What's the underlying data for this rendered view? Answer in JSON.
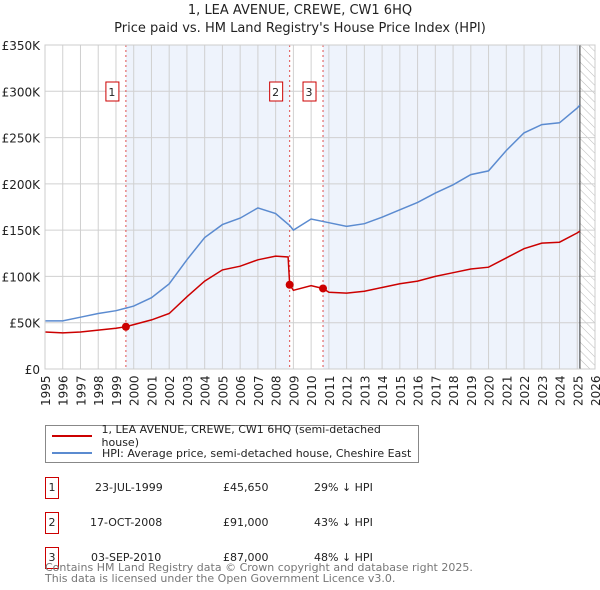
{
  "header": {
    "title": "1, LEA AVENUE, CREWE, CW1 6HQ",
    "subtitle": "Price paid vs. HM Land Registry's House Price Index (HPI)"
  },
  "chart_data": {
    "type": "line",
    "title": "1, LEA AVENUE, CREWE, CW1 6HQ",
    "subtitle": "Price paid vs. HM Land Registry's House Price Index (HPI)",
    "xlim": [
      1995,
      2026
    ],
    "ylim": [
      0,
      350000
    ],
    "x_ticks": [
      "1995",
      "1996",
      "1997",
      "1998",
      "1999",
      "2000",
      "2001",
      "2002",
      "2003",
      "2004",
      "2005",
      "2006",
      "2007",
      "2008",
      "2009",
      "2010",
      "2011",
      "2012",
      "2013",
      "2014",
      "2015",
      "2016",
      "2017",
      "2018",
      "2019",
      "2020",
      "2021",
      "2022",
      "2023",
      "2024",
      "2025",
      "2026"
    ],
    "y_ticks": [
      {
        "v": 0,
        "label": "£0"
      },
      {
        "v": 50000,
        "label": "£50K"
      },
      {
        "v": 100000,
        "label": "£100K"
      },
      {
        "v": 150000,
        "label": "£150K"
      },
      {
        "v": 200000,
        "label": "£200K"
      },
      {
        "v": 250000,
        "label": "£250K"
      },
      {
        "v": 300000,
        "label": "£300K"
      },
      {
        "v": 350000,
        "label": "£350K"
      }
    ],
    "grid": true,
    "forecast_start": 2025.15,
    "series": [
      {
        "name": "1, LEA AVENUE, CREWE, CW1 6HQ (semi-detached house)",
        "color": "#cc0000",
        "x": [
          1995,
          1996,
          1997,
          1998,
          1999,
          1999.56,
          2000,
          2001,
          2002,
          2003,
          2004,
          2005,
          2006,
          2007,
          2008,
          2008.7,
          2008.79,
          2009,
          2010,
          2010.67,
          2011,
          2012,
          2013,
          2014,
          2015,
          2016,
          2017,
          2018,
          2019,
          2020,
          2021,
          2022,
          2023,
          2024,
          2025,
          2025.15
        ],
        "y": [
          40000,
          39000,
          40000,
          42000,
          44000,
          45650,
          48000,
          53000,
          60000,
          78000,
          95000,
          107000,
          111000,
          118000,
          122000,
          121000,
          91000,
          85000,
          90000,
          87000,
          83000,
          82000,
          84000,
          88000,
          92000,
          95000,
          100000,
          104000,
          108000,
          110000,
          120000,
          130000,
          136000,
          137000,
          147000,
          149000
        ]
      },
      {
        "name": "HPI: Average price, semi-detached house, Cheshire East",
        "color": "#5b8bd0",
        "x": [
          1995,
          1996,
          1997,
          1998,
          1999,
          2000,
          2001,
          2002,
          2003,
          2004,
          2005,
          2006,
          2007,
          2008,
          2008.79,
          2009,
          2010,
          2011,
          2012,
          2013,
          2014,
          2015,
          2016,
          2017,
          2018,
          2019,
          2020,
          2021,
          2022,
          2023,
          2024,
          2025,
          2025.15
        ],
        "y": [
          52000,
          52000,
          56000,
          60000,
          63000,
          68000,
          77000,
          92000,
          118000,
          142000,
          156000,
          163000,
          174000,
          168000,
          155000,
          150000,
          162000,
          158000,
          154000,
          157000,
          164000,
          172000,
          180000,
          190000,
          199000,
          210000,
          214000,
          236000,
          255000,
          264000,
          266000,
          282000,
          285000
        ]
      }
    ],
    "sales": [
      {
        "label": "1",
        "x": 1999.56,
        "y": 45650
      },
      {
        "label": "2",
        "x": 2008.79,
        "y": 91000
      },
      {
        "label": "3",
        "x": 2010.67,
        "y": 87000
      }
    ],
    "legend_placement": "bottom"
  },
  "table": [
    {
      "num": "1",
      "date": "23-JUL-1999",
      "price": "£45,650",
      "hpi": "29% ↓ HPI"
    },
    {
      "num": "2",
      "date": "17-OCT-2008",
      "price": "£91,000",
      "hpi": "43% ↓ HPI"
    },
    {
      "num": "3",
      "date": "03-SEP-2010",
      "price": "£87,000",
      "hpi": "48% ↓ HPI"
    }
  ],
  "footer": {
    "line1": "Contains HM Land Registry data © Crown copyright and database right 2025.",
    "line2": "This data is licensed under the Open Government Licence v3.0."
  }
}
